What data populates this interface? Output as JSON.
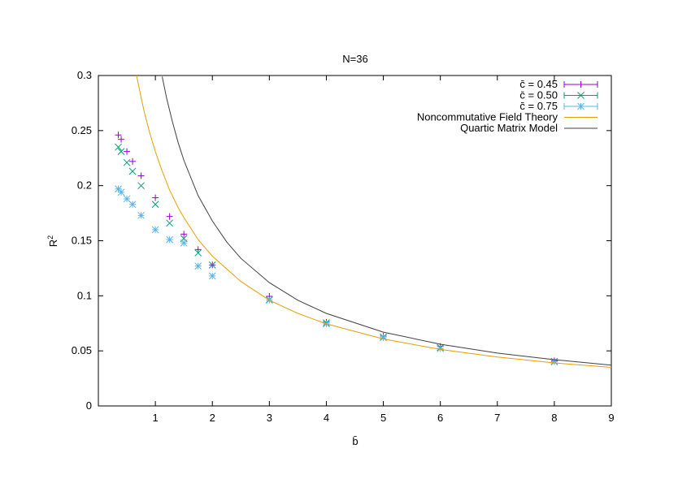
{
  "chart_data": {
    "type": "scatter",
    "title": "N=36",
    "xlabel": "b̄",
    "ylabel": "R",
    "ylabel_sup": "2",
    "xlim": [
      0,
      9
    ],
    "ylim": [
      0,
      0.3
    ],
    "xticks": [
      1,
      2,
      3,
      4,
      5,
      6,
      7,
      8,
      9
    ],
    "yticks": [
      0,
      0.05,
      0.1,
      0.15,
      0.2,
      0.25,
      0.3
    ],
    "ytick_labels": [
      "0",
      "0.05",
      "0.1",
      "0.15",
      "0.2",
      "0.25",
      "0.3"
    ],
    "grid": false,
    "legend_placement": "top-right",
    "series": [
      {
        "name": "c̄ = 0.45",
        "kind": "points",
        "marker": "plus",
        "color": "#9400d3",
        "x": [
          0.35,
          0.4,
          0.5,
          0.6,
          0.75,
          1.0,
          1.25,
          1.5,
          1.75,
          2.0,
          3,
          4,
          5,
          6,
          8
        ],
        "y": [
          0.246,
          0.242,
          0.231,
          0.222,
          0.209,
          0.189,
          0.172,
          0.156,
          0.142,
          0.128,
          0.0995,
          0.076,
          0.0634,
          0.054,
          0.041
        ]
      },
      {
        "name": "c̄ = 0.50",
        "kind": "points",
        "marker": "cross",
        "color": "#009e73",
        "x": [
          0.35,
          0.4,
          0.5,
          0.6,
          0.75,
          1.0,
          1.25,
          1.5,
          1.75,
          2.0,
          3,
          4,
          5,
          6,
          8
        ],
        "y": [
          0.235,
          0.231,
          0.221,
          0.213,
          0.2,
          0.183,
          0.166,
          0.152,
          0.139,
          0.128,
          0.0965,
          0.0755,
          0.0626,
          0.053,
          0.0405
        ]
      },
      {
        "name": "c̄ = 0.75",
        "kind": "points",
        "marker": "star",
        "color": "#56b4e9",
        "x": [
          0.35,
          0.4,
          0.5,
          0.6,
          0.75,
          1.0,
          1.25,
          1.5,
          1.75,
          2.0,
          3,
          4,
          5,
          6,
          8
        ],
        "y": [
          0.197,
          0.194,
          0.188,
          0.183,
          0.173,
          0.16,
          0.151,
          0.148,
          0.127,
          0.118,
          0.096,
          0.0745,
          0.062,
          0.052,
          0.04
        ]
      },
      {
        "name": "Noncommutative Field Theory",
        "kind": "line",
        "color": "#e69f00",
        "x": [
          0.67,
          0.75,
          0.8,
          0.9,
          1.0,
          1.1,
          1.25,
          1.4,
          1.5,
          1.75,
          2,
          2.5,
          3,
          3.5,
          4,
          5,
          6,
          7,
          8,
          9
        ],
        "y": [
          0.3,
          0.28,
          0.268,
          0.248,
          0.231,
          0.216,
          0.196,
          0.18,
          0.171,
          0.151,
          0.136,
          0.113,
          0.096,
          0.084,
          0.0745,
          0.0608,
          0.0513,
          0.0444,
          0.0391,
          0.035
        ]
      },
      {
        "name": "Quartic Matrix Model",
        "kind": "line",
        "color": "#404040",
        "x": [
          1.12,
          1.2,
          1.3,
          1.4,
          1.5,
          1.75,
          2,
          2.25,
          2.5,
          3,
          3.5,
          4,
          5,
          6,
          7,
          8,
          9
        ],
        "y": [
          0.299,
          0.279,
          0.258,
          0.239,
          0.223,
          0.191,
          0.168,
          0.149,
          0.134,
          0.112,
          0.096,
          0.084,
          0.067,
          0.056,
          0.048,
          0.042,
          0.037
        ]
      }
    ]
  }
}
